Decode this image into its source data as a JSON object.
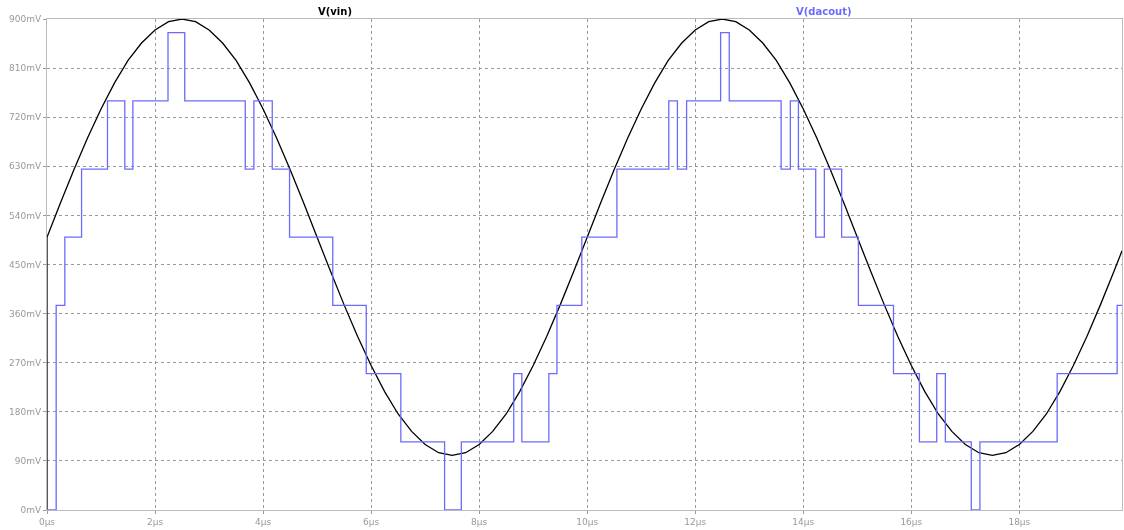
{
  "chart_data": {
    "type": "line",
    "xlabel": null,
    "xlim": [
      0,
      19.9
    ],
    "ylim": [
      0,
      900
    ],
    "xticks": [
      {
        "value": 0,
        "label": "0µs"
      },
      {
        "value": 2,
        "label": "2µs"
      },
      {
        "value": 4,
        "label": "4µs"
      },
      {
        "value": 6,
        "label": "6µs"
      },
      {
        "value": 8,
        "label": "8µs"
      },
      {
        "value": 10,
        "label": "10µs"
      },
      {
        "value": 12,
        "label": "12µs"
      },
      {
        "value": 14,
        "label": "14µs"
      },
      {
        "value": 16,
        "label": "16µs"
      },
      {
        "value": 18,
        "label": "18µs"
      }
    ],
    "yticks": [
      {
        "value": 0,
        "label": "0mV"
      },
      {
        "value": 90,
        "label": "90mV"
      },
      {
        "value": 180,
        "label": "180mV"
      },
      {
        "value": 270,
        "label": "270mV"
      },
      {
        "value": 360,
        "label": "360mV"
      },
      {
        "value": 450,
        "label": "450mV"
      },
      {
        "value": 540,
        "label": "540mV"
      },
      {
        "value": 630,
        "label": "630mV"
      },
      {
        "value": 720,
        "label": "720mV"
      },
      {
        "value": 810,
        "label": "810mV"
      },
      {
        "value": 900,
        "label": "900mV"
      }
    ],
    "grid": true,
    "legend": false,
    "series": [
      {
        "name": "V(vin)",
        "color": "#000000",
        "x": [
          0,
          0,
          0.25,
          0.5,
          0.75,
          1,
          1.25,
          1.5,
          1.75,
          2,
          2.25,
          2.5,
          2.75,
          3,
          3.25,
          3.5,
          3.75,
          4,
          4.25,
          4.5,
          4.75,
          5,
          5.25,
          5.5,
          5.75,
          6,
          6.25,
          6.5,
          6.75,
          7,
          7.25,
          7.5,
          7.75,
          8,
          8.25,
          8.5,
          8.75,
          9,
          9.25,
          9.5,
          9.75,
          10,
          10.25,
          10.5,
          10.75,
          11,
          11.25,
          11.5,
          11.75,
          12,
          12.25,
          12.5,
          12.75,
          13,
          13.25,
          13.5,
          13.75,
          14,
          14.25,
          14.5,
          14.75,
          15,
          15.25,
          15.5,
          15.75,
          16,
          16.25,
          16.5,
          16.75,
          17,
          17.25,
          17.5,
          17.75,
          18,
          18.25,
          18.5,
          18.75,
          19,
          19.25,
          19.5,
          19.75,
          19.9
        ],
        "values": [
          0,
          500,
          563,
          624,
          682,
          735,
          783,
          824,
          856,
          880,
          895,
          900,
          895,
          880,
          856,
          824,
          783,
          735,
          682,
          624,
          563,
          500,
          437,
          376,
          318,
          265,
          217,
          176,
          144,
          120,
          105,
          100,
          105,
          120,
          144,
          176,
          217,
          265,
          318,
          376,
          437,
          500,
          563,
          624,
          682,
          735,
          783,
          824,
          856,
          880,
          895,
          900,
          895,
          880,
          856,
          824,
          783,
          735,
          682,
          624,
          563,
          500,
          437,
          376,
          318,
          265,
          217,
          176,
          144,
          120,
          105,
          100,
          105,
          120,
          144,
          176,
          217,
          265,
          318,
          376,
          437,
          475
        ]
      },
      {
        "name": "V(dacout)",
        "color": "#6b6bff",
        "type": "step",
        "x": [
          0,
          0.17,
          0.33,
          0.64,
          1.12,
          1.44,
          1.59,
          2.24,
          2.55,
          3.67,
          3.83,
          4.17,
          4.49,
          5.29,
          5.91,
          6.55,
          7.36,
          7.67,
          8.64,
          8.79,
          9.29,
          9.44,
          9.9,
          10.55,
          11.51,
          11.67,
          11.84,
          12.47,
          12.63,
          13.59,
          13.76,
          13.91,
          14.23,
          14.39,
          14.71,
          15.02,
          15.67,
          16.15,
          16.47,
          16.63,
          17.11,
          17.27,
          18.7,
          19.81,
          19.9
        ],
        "values": [
          0,
          375,
          500,
          625,
          750,
          625,
          750,
          875,
          750,
          625,
          750,
          625,
          500,
          375,
          250,
          125,
          0,
          125,
          250,
          125,
          250,
          375,
          500,
          625,
          750,
          625,
          750,
          875,
          750,
          625,
          750,
          625,
          500,
          625,
          500,
          375,
          250,
          125,
          250,
          125,
          0,
          125,
          250,
          375,
          375
        ]
      }
    ]
  }
}
